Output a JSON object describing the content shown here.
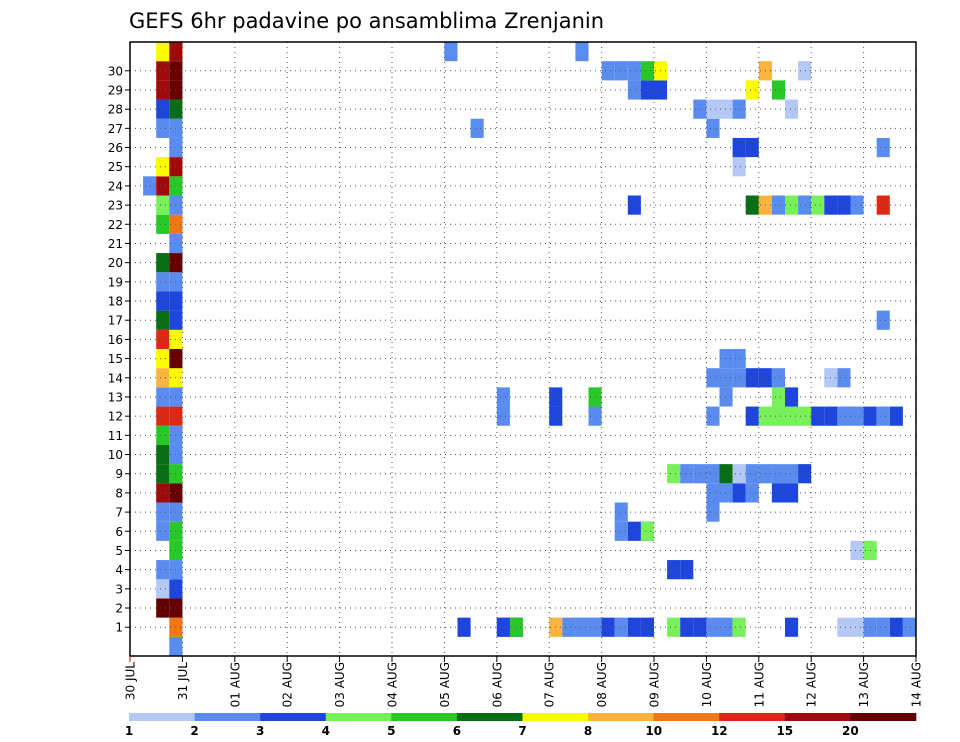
{
  "chart_data": {
    "type": "heatmap",
    "title": "GEFS 6hr padavine po ansamblima Zrenjanin",
    "x_ticks": [
      "30 JUL",
      "31 JUL",
      "01 AUG",
      "02 AUG",
      "03 AUG",
      "04 AUG",
      "05 AUG",
      "06 AUG",
      "07 AUG",
      "08 AUG",
      "09 AUG",
      "10 AUG",
      "11 AUG",
      "12 AUG",
      "13 AUG",
      "14 AUG"
    ],
    "y_ticks": [
      "1",
      "2",
      "3",
      "4",
      "5",
      "6",
      "7",
      "8",
      "9",
      "10",
      "11",
      "12",
      "13",
      "14",
      "15",
      "16",
      "17",
      "18",
      "19",
      "20",
      "21",
      "22",
      "23",
      "24",
      "25",
      "26",
      "27",
      "28",
      "29",
      "30"
    ],
    "colorbar": {
      "labels": [
        "1",
        "2",
        "3",
        "4",
        "5",
        "6",
        "7",
        "8",
        "10",
        "12",
        "15",
        "20"
      ],
      "colors": [
        "#b4c8f5",
        "#5a8cf0",
        "#1e46dc",
        "#78f05a",
        "#28c828",
        "#0a6e14",
        "#fafa00",
        "#fab43c",
        "#f07814",
        "#dc2814",
        "#a00a0a",
        "#640000"
      ]
    },
    "cells": [
      {
        "m": 0,
        "s": [
          [
            3,
            1
          ]
        ]
      },
      {
        "m": 1,
        "s": [
          [
            3,
            8
          ],
          [
            25,
            2
          ],
          [
            28,
            1
          ],
          [
            28,
            2
          ],
          [
            29,
            2
          ],
          [
            29,
            4
          ],
          [
            32,
            7
          ],
          [
            33,
            1
          ],
          [
            34,
            1
          ],
          [
            35,
            1
          ],
          [
            36,
            2
          ],
          [
            37,
            1
          ],
          [
            38,
            2
          ],
          [
            39,
            2
          ],
          [
            41,
            3
          ],
          [
            42,
            2
          ],
          [
            43,
            2
          ],
          [
            44,
            1
          ],
          [
            45,
            1
          ],
          [
            46,
            3
          ],
          [
            50,
            2
          ],
          [
            54,
            0
          ],
          [
            55,
            0
          ],
          [
            56,
            1
          ],
          [
            57,
            1
          ],
          [
            58,
            2
          ],
          [
            59,
            1
          ]
        ]
      },
      {
        "m": 2,
        "s": [
          [
            2,
            11
          ],
          [
            3,
            11
          ]
        ]
      },
      {
        "m": 3,
        "s": [
          [
            2,
            0
          ],
          [
            3,
            2
          ]
        ]
      },
      {
        "m": 4,
        "s": [
          [
            2,
            1
          ],
          [
            3,
            1
          ],
          [
            41,
            2
          ],
          [
            42,
            2
          ]
        ]
      },
      {
        "m": 5,
        "s": [
          [
            3,
            4
          ],
          [
            55,
            0
          ],
          [
            56,
            3
          ]
        ]
      },
      {
        "m": 6,
        "s": [
          [
            2,
            1
          ],
          [
            3,
            4
          ],
          [
            37,
            1
          ],
          [
            38,
            2
          ],
          [
            39,
            2
          ],
          [
            39,
            3
          ]
        ]
      },
      {
        "m": 7,
        "s": [
          [
            2,
            1
          ],
          [
            3,
            1
          ],
          [
            37,
            1
          ],
          [
            44,
            1
          ]
        ]
      },
      {
        "m": 8,
        "s": [
          [
            2,
            10
          ],
          [
            3,
            11
          ],
          [
            44,
            1
          ],
          [
            45,
            1
          ],
          [
            46,
            2
          ],
          [
            47,
            1
          ],
          [
            49,
            1
          ],
          [
            49,
            2
          ],
          [
            50,
            1
          ],
          [
            50,
            2
          ]
        ]
      },
      {
        "m": 9,
        "s": [
          [
            2,
            5
          ],
          [
            3,
            4
          ],
          [
            41,
            3
          ],
          [
            42,
            1
          ],
          [
            43,
            1
          ],
          [
            44,
            1
          ],
          [
            45,
            5
          ],
          [
            46,
            0
          ],
          [
            47,
            1
          ],
          [
            48,
            1
          ],
          [
            49,
            1
          ],
          [
            50,
            1
          ],
          [
            51,
            2
          ]
        ]
      },
      {
        "m": 10,
        "s": [
          [
            2,
            5
          ],
          [
            3,
            1
          ]
        ]
      },
      {
        "m": 11,
        "s": [
          [
            2,
            4
          ],
          [
            3,
            1
          ]
        ]
      },
      {
        "m": 12,
        "s": [
          [
            2,
            9
          ],
          [
            3,
            9
          ],
          [
            28,
            1
          ],
          [
            32,
            2
          ],
          [
            35,
            1
          ],
          [
            44,
            1
          ],
          [
            47,
            2
          ],
          [
            48,
            3
          ],
          [
            49,
            3
          ],
          [
            50,
            3
          ],
          [
            51,
            3
          ],
          [
            52,
            2
          ],
          [
            53,
            2
          ],
          [
            54,
            1
          ],
          [
            55,
            1
          ],
          [
            56,
            2
          ],
          [
            57,
            1
          ],
          [
            58,
            2
          ]
        ]
      },
      {
        "m": 13,
        "s": [
          [
            2,
            1
          ],
          [
            3,
            1
          ],
          [
            28,
            1
          ],
          [
            32,
            2
          ],
          [
            35,
            4
          ],
          [
            45,
            1
          ],
          [
            49,
            3
          ],
          [
            50,
            2
          ]
        ]
      },
      {
        "m": 14,
        "s": [
          [
            2,
            7
          ],
          [
            3,
            6
          ],
          [
            44,
            1
          ],
          [
            45,
            1
          ],
          [
            46,
            1
          ],
          [
            47,
            2
          ],
          [
            48,
            2
          ],
          [
            49,
            1
          ],
          [
            53,
            0
          ],
          [
            54,
            1
          ]
        ]
      },
      {
        "m": 15,
        "s": [
          [
            2,
            6
          ],
          [
            3,
            11
          ],
          [
            45,
            1
          ],
          [
            46,
            1
          ]
        ]
      },
      {
        "m": 16,
        "s": [
          [
            2,
            9
          ],
          [
            3,
            6
          ]
        ]
      },
      {
        "m": 17,
        "s": [
          [
            2,
            5
          ],
          [
            3,
            2
          ],
          [
            57,
            1
          ]
        ]
      },
      {
        "m": 18,
        "s": [
          [
            2,
            2
          ],
          [
            3,
            2
          ]
        ]
      },
      {
        "m": 19,
        "s": [
          [
            2,
            1
          ],
          [
            3,
            1
          ]
        ]
      },
      {
        "m": 20,
        "s": [
          [
            2,
            5
          ],
          [
            3,
            11
          ]
        ]
      },
      {
        "m": 21,
        "s": [
          [
            3,
            1
          ]
        ]
      },
      {
        "m": 22,
        "s": [
          [
            2,
            4
          ],
          [
            3,
            8
          ]
        ]
      },
      {
        "m": 23,
        "s": [
          [
            2,
            3
          ],
          [
            3,
            1
          ],
          [
            38,
            2
          ],
          [
            47,
            5
          ],
          [
            48,
            7
          ],
          [
            49,
            1
          ],
          [
            50,
            3
          ],
          [
            51,
            1
          ],
          [
            52,
            3
          ],
          [
            53,
            2
          ],
          [
            54,
            2
          ],
          [
            55,
            1
          ],
          [
            57,
            9
          ]
        ]
      },
      {
        "m": 24,
        "s": [
          [
            1,
            1
          ],
          [
            2,
            10
          ],
          [
            3,
            4
          ]
        ]
      },
      {
        "m": 25,
        "s": [
          [
            2,
            6
          ],
          [
            3,
            10
          ],
          [
            46,
            0
          ]
        ]
      },
      {
        "m": 26,
        "s": [
          [
            3,
            1
          ],
          [
            46,
            2
          ],
          [
            47,
            2
          ],
          [
            57,
            1
          ]
        ]
      },
      {
        "m": 27,
        "s": [
          [
            2,
            1
          ],
          [
            3,
            1
          ],
          [
            26,
            1
          ],
          [
            44,
            1
          ]
        ]
      },
      {
        "m": 28,
        "s": [
          [
            2,
            2
          ],
          [
            3,
            5
          ],
          [
            43,
            1
          ],
          [
            44,
            0
          ],
          [
            45,
            0
          ],
          [
            46,
            1
          ],
          [
            50,
            0
          ]
        ]
      },
      {
        "m": 29,
        "s": [
          [
            2,
            10
          ],
          [
            3,
            11
          ],
          [
            38,
            1
          ],
          [
            39,
            2
          ],
          [
            40,
            2
          ],
          [
            47,
            6
          ],
          [
            49,
            4
          ]
        ]
      },
      {
        "m": 30,
        "s": [
          [
            2,
            10
          ],
          [
            3,
            11
          ],
          [
            36,
            1
          ],
          [
            37,
            1
          ],
          [
            38,
            1
          ],
          [
            39,
            4
          ],
          [
            40,
            6
          ],
          [
            48,
            7
          ],
          [
            51,
            0
          ]
        ]
      },
      {
        "m": 31,
        "s": [
          [
            2,
            6
          ],
          [
            3,
            10
          ],
          [
            24,
            1
          ],
          [
            34,
            1
          ]
        ]
      }
    ]
  }
}
